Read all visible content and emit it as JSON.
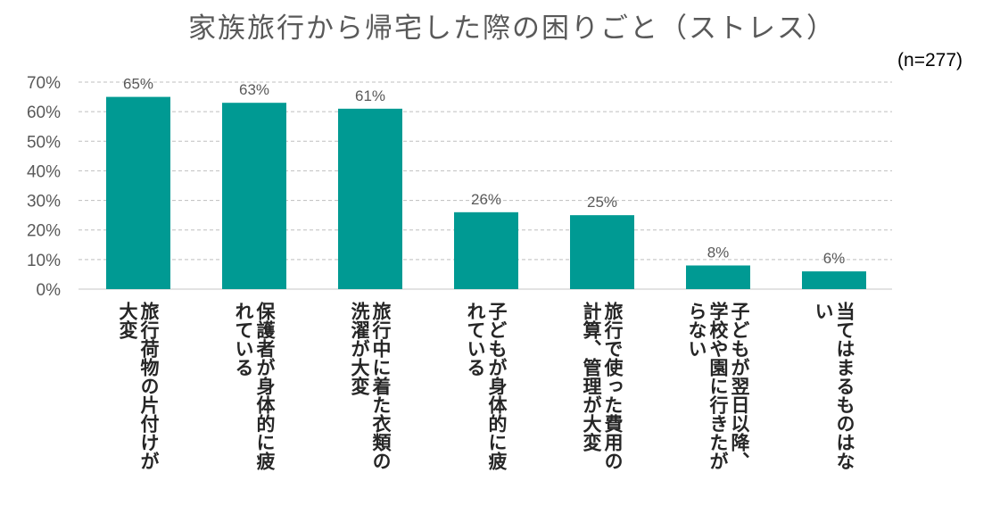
{
  "chart_data": {
    "type": "bar",
    "title": "家族旅行から帰宅した際の困りごと（ストレス）",
    "note": "(n=277)",
    "ylim": [
      0,
      70
    ],
    "yticks": [
      "0%",
      "10%",
      "20%",
      "30%",
      "40%",
      "50%",
      "60%",
      "70%"
    ],
    "grid": true,
    "colors": {
      "bar": "#009a93",
      "grid": "#bfbfbf",
      "axis": "#d9d9d9"
    },
    "categories": [
      [
        "旅行荷物の片付けが",
        "大変"
      ],
      [
        "保護者が身体的に疲",
        "れている"
      ],
      [
        "旅行中に着た衣類の",
        "洗濯が大変"
      ],
      [
        "子どもが身体的に疲",
        "れている"
      ],
      [
        "旅行で使った費用の",
        "計算、管理が大変"
      ],
      [
        "子どもが翌日以降、",
        "学校や園に行きたが",
        "らない"
      ],
      [
        "当てはまるものはな",
        "い"
      ]
    ],
    "values": [
      65,
      63,
      61,
      26,
      25,
      8,
      6
    ],
    "value_labels": [
      "65%",
      "63%",
      "61%",
      "26%",
      "25%",
      "8%",
      "6%"
    ]
  }
}
